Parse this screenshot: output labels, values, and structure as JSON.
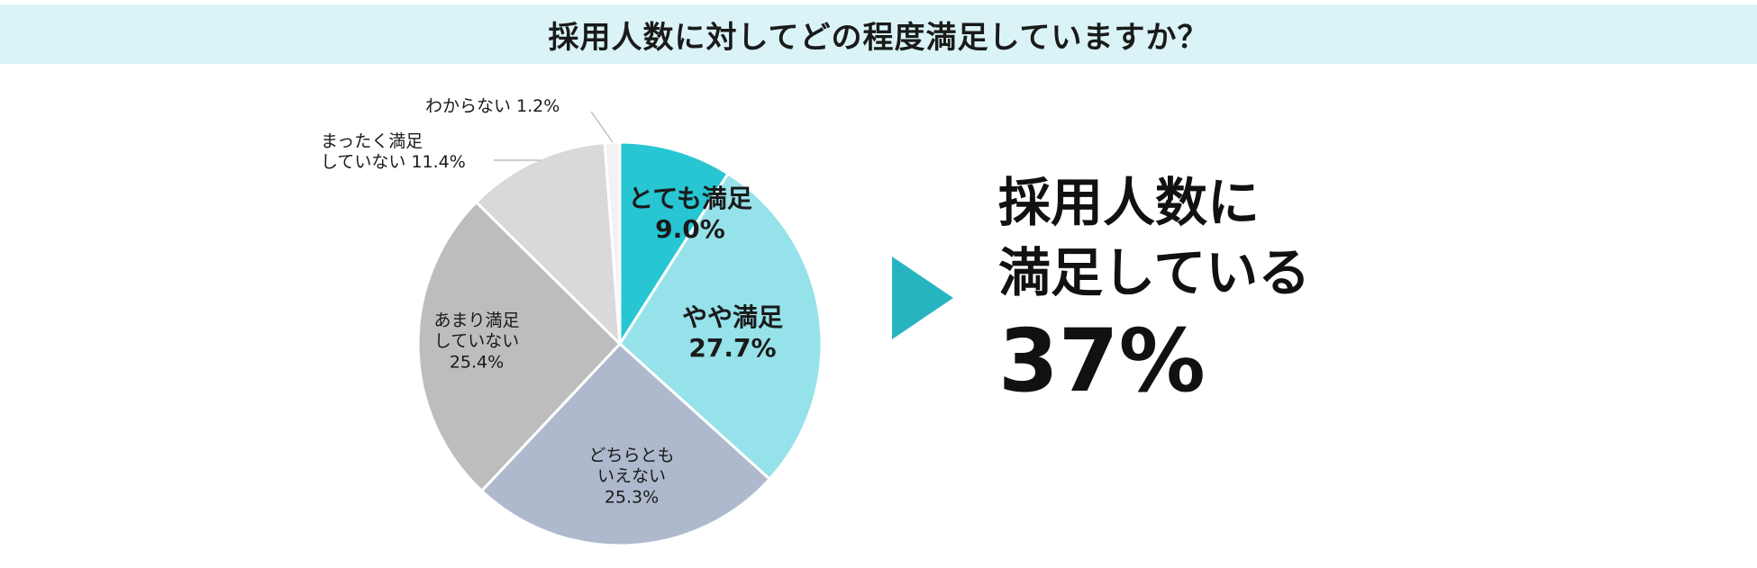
{
  "title": "採用人数に対してどの程度満足していますか？",
  "summary": {
    "line1": "採用人数に",
    "line2": "満足している",
    "percent": "37%"
  },
  "colors": {
    "title_band": "#daf3f6",
    "arrow": "#27b4c1"
  },
  "chart_data": {
    "type": "pie",
    "title": "採用人数に対してどの程度満足していますか？",
    "unit": "%",
    "slices": [
      {
        "label": "とても満足",
        "value": 9.0,
        "value_text": "9.0%",
        "color": "#27c6d2"
      },
      {
        "label": "やや満足",
        "value": 27.7,
        "value_text": "27.7%",
        "color": "#96e2ea"
      },
      {
        "label": "どちらとも\nいえない",
        "value": 25.3,
        "value_text": "25.3%",
        "color": "#aeb9cd"
      },
      {
        "label": "あまり満足\nしていない",
        "value": 25.4,
        "value_text": "25.4%",
        "color": "#bdbdbd"
      },
      {
        "label": "まったく満足\nしていない",
        "value": 11.4,
        "value_text": "11.4%",
        "color": "#d9d9d9"
      },
      {
        "label": "わからない",
        "value": 1.2,
        "value_text": "1.2%",
        "color": "#f2f2f2"
      }
    ]
  }
}
